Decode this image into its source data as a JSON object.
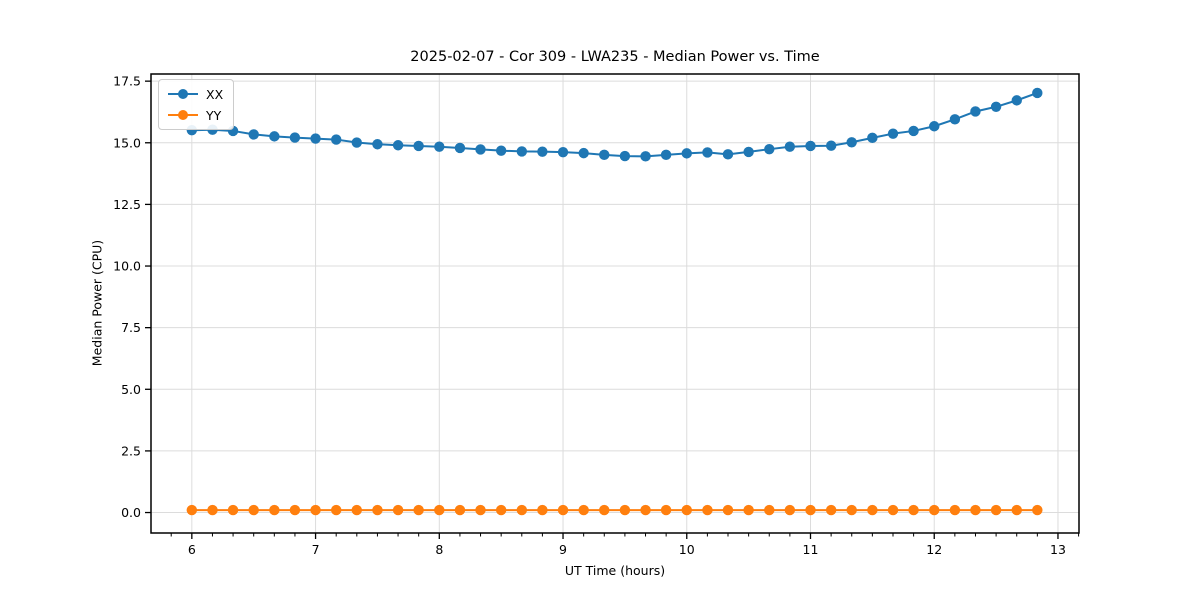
{
  "chart_data": {
    "type": "line",
    "title": "2025-02-07 - Cor 309 - LWA235 - Median Power vs. Time",
    "xlabel": "UT Time (hours)",
    "ylabel": "Median Power (CPU)",
    "xlim": [
      5.67,
      13.17
    ],
    "ylim": [
      -0.83,
      17.79
    ],
    "xticks": [
      6,
      7,
      8,
      9,
      10,
      11,
      12,
      13
    ],
    "yticks": [
      0.0,
      2.5,
      5.0,
      7.5,
      10.0,
      12.5,
      15.0,
      17.5
    ],
    "ytick_labels": [
      "0.0",
      "2.5",
      "5.0",
      "7.5",
      "10.0",
      "12.5",
      "15.0",
      "17.5"
    ],
    "x_minor_ticks_per_major": 6,
    "grid": true,
    "legend_position": "upper-left",
    "x": [
      6.0,
      6.167,
      6.333,
      6.5,
      6.667,
      6.833,
      7.0,
      7.167,
      7.333,
      7.5,
      7.667,
      7.833,
      8.0,
      8.167,
      8.333,
      8.5,
      8.667,
      8.833,
      9.0,
      9.167,
      9.333,
      9.5,
      9.667,
      9.833,
      10.0,
      10.167,
      10.333,
      10.5,
      10.667,
      10.833,
      11.0,
      11.167,
      11.333,
      11.5,
      11.667,
      11.833,
      12.0,
      12.167,
      12.333,
      12.5,
      12.667,
      12.833
    ],
    "series": [
      {
        "name": "XX",
        "color": "#1f77b4",
        "values": [
          15.51,
          15.53,
          15.48,
          15.34,
          15.26,
          15.21,
          15.17,
          15.13,
          15.01,
          14.94,
          14.9,
          14.87,
          14.84,
          14.79,
          14.73,
          14.68,
          14.65,
          14.64,
          14.62,
          14.58,
          14.51,
          14.46,
          14.45,
          14.51,
          14.57,
          14.61,
          14.53,
          14.63,
          14.74,
          14.84,
          14.87,
          14.88,
          15.02,
          15.2,
          15.37,
          15.48,
          15.67,
          15.95,
          16.27,
          16.46,
          16.72,
          17.02
        ]
      },
      {
        "name": "YY",
        "color": "#ff7f0e",
        "values": [
          0.1,
          0.1,
          0.1,
          0.1,
          0.1,
          0.1,
          0.1,
          0.1,
          0.1,
          0.1,
          0.1,
          0.1,
          0.1,
          0.1,
          0.1,
          0.1,
          0.1,
          0.1,
          0.1,
          0.1,
          0.1,
          0.1,
          0.1,
          0.1,
          0.1,
          0.1,
          0.1,
          0.1,
          0.1,
          0.1,
          0.1,
          0.1,
          0.1,
          0.1,
          0.1,
          0.1,
          0.1,
          0.1,
          0.1,
          0.1,
          0.1,
          0.1
        ]
      }
    ]
  }
}
